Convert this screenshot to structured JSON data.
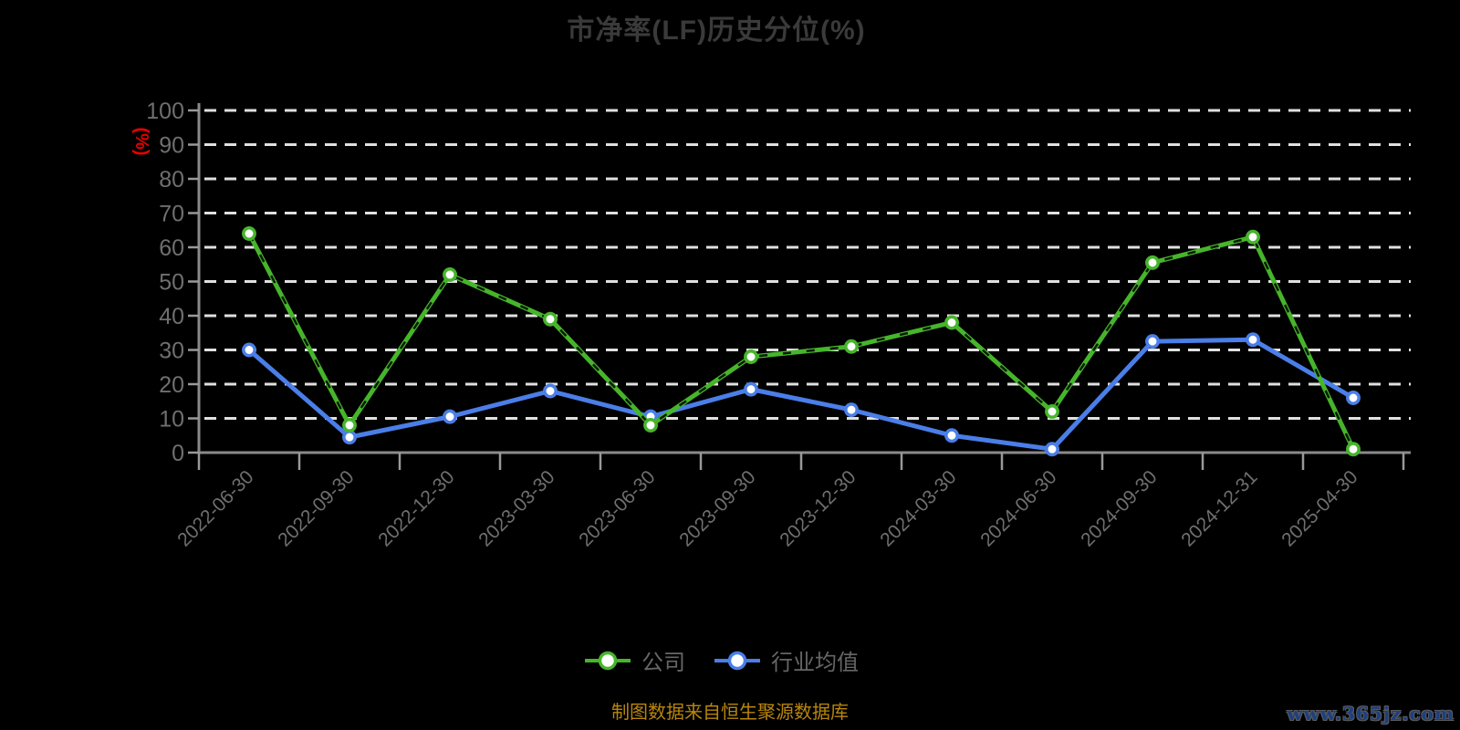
{
  "title": "市净率(LF)历史分位(%)",
  "chart_data": {
    "type": "line",
    "title": "市净率(LF)历史分位(%)",
    "ylabel": "(%)",
    "ylim": [
      0,
      100
    ],
    "y_ticks": [
      0,
      10,
      20,
      30,
      40,
      50,
      60,
      70,
      80,
      90,
      100
    ],
    "grid": "horizontal-dashed",
    "legend_position": "bottom",
    "categories": [
      "2022-06-30",
      "2022-09-30",
      "2022-12-30",
      "2023-03-30",
      "2023-06-30",
      "2023-09-30",
      "2023-12-30",
      "2024-03-30",
      "2024-06-30",
      "2024-09-30",
      "2024-12-31",
      "2025-04-30"
    ],
    "series": [
      {
        "name": "公司",
        "color": "#46b52b",
        "values": [
          64,
          8,
          52,
          39,
          8,
          28,
          31,
          38,
          12,
          55.5,
          63,
          1
        ]
      },
      {
        "name": "行业均值",
        "color": "#4a7ee8",
        "values": [
          30,
          4.5,
          10.5,
          18,
          10.5,
          18.5,
          12.5,
          5,
          1,
          32.5,
          33,
          16
        ]
      }
    ]
  },
  "footer": {
    "source_note": "制图数据来自恒生聚源数据库",
    "watermark": "www.365jz.com"
  },
  "colors": {
    "background": "#000000",
    "title": "#3a3a3a",
    "axis_line": "#8a8a8a",
    "tick": "#999999",
    "grid_line": "#e0e0e0",
    "axis_label": "#6f6f6f",
    "unit_label": "#e80000",
    "legend_text": "#666666",
    "source_note": "#b8860b",
    "watermark": "#1d3f80"
  }
}
